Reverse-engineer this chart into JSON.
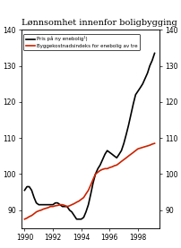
{
  "title": "Lønnsomhet innenfor boligbygging",
  "ylim": [
    85,
    140
  ],
  "yticks": [
    90,
    100,
    110,
    120,
    130,
    140
  ],
  "xlim": [
    1989.8,
    1999.5
  ],
  "xticks": [
    1990,
    1992,
    1994,
    1996,
    1998
  ],
  "legend": [
    {
      "label": "Pris på ny enebolig¹)",
      "color": "#000000",
      "lw": 1.2
    },
    {
      "label": "Byggekostnadsindeks for enebolig av tre",
      "color": "#cc2200",
      "lw": 1.2
    }
  ],
  "line1_x": [
    1990.0,
    1990.17,
    1990.33,
    1990.5,
    1990.67,
    1990.83,
    1991.0,
    1991.17,
    1991.33,
    1991.5,
    1991.67,
    1991.83,
    1992.0,
    1992.17,
    1992.33,
    1992.5,
    1992.67,
    1992.83,
    1993.0,
    1993.17,
    1993.33,
    1993.5,
    1993.67,
    1993.83,
    1994.0,
    1994.17,
    1994.33,
    1994.5,
    1994.67,
    1994.83,
    1995.0,
    1995.17,
    1995.33,
    1995.5,
    1995.67,
    1995.83,
    1996.0,
    1996.17,
    1996.33,
    1996.5,
    1996.67,
    1996.83,
    1997.0,
    1997.17,
    1997.33,
    1997.5,
    1997.67,
    1997.83,
    1998.0,
    1998.17,
    1998.33,
    1998.5,
    1998.67,
    1998.83,
    1999.0,
    1999.17
  ],
  "line1_y": [
    95.5,
    96.5,
    96.5,
    95.5,
    93.5,
    92.0,
    91.5,
    91.5,
    91.5,
    91.5,
    91.5,
    91.5,
    91.5,
    92.0,
    92.0,
    91.5,
    91.0,
    91.0,
    91.0,
    90.0,
    89.5,
    88.5,
    87.5,
    87.5,
    87.5,
    88.0,
    89.5,
    91.5,
    94.5,
    97.5,
    100.0,
    101.5,
    102.5,
    104.0,
    105.5,
    106.5,
    106.0,
    105.5,
    105.0,
    104.5,
    105.5,
    106.5,
    108.5,
    111.0,
    113.5,
    116.5,
    119.5,
    122.0,
    123.0,
    124.0,
    125.0,
    126.5,
    128.0,
    130.0,
    131.5,
    133.5
  ],
  "line2_x": [
    1990.0,
    1990.17,
    1990.33,
    1990.5,
    1990.67,
    1990.83,
    1991.0,
    1991.17,
    1991.33,
    1991.5,
    1991.67,
    1991.83,
    1992.0,
    1992.17,
    1992.33,
    1992.5,
    1992.67,
    1992.83,
    1993.0,
    1993.17,
    1993.33,
    1993.5,
    1993.67,
    1993.83,
    1994.0,
    1994.17,
    1994.33,
    1994.5,
    1994.67,
    1994.83,
    1995.0,
    1995.17,
    1995.33,
    1995.5,
    1995.67,
    1995.83,
    1996.0,
    1996.17,
    1996.33,
    1996.5,
    1996.67,
    1996.83,
    1997.0,
    1997.17,
    1997.33,
    1997.5,
    1997.67,
    1997.83,
    1998.0,
    1998.17,
    1998.33,
    1998.5,
    1998.67,
    1998.83,
    1999.0,
    1999.17
  ],
  "line2_y": [
    87.5,
    87.8,
    88.2,
    88.5,
    89.0,
    89.5,
    89.8,
    90.0,
    90.3,
    90.5,
    90.7,
    91.0,
    91.0,
    91.2,
    91.3,
    91.5,
    91.5,
    91.3,
    91.0,
    91.2,
    91.5,
    91.8,
    92.2,
    92.5,
    93.0,
    93.5,
    94.5,
    95.5,
    97.0,
    98.5,
    100.0,
    100.5,
    101.0,
    101.3,
    101.5,
    101.5,
    101.8,
    102.0,
    102.3,
    102.5,
    103.0,
    103.5,
    104.0,
    104.5,
    105.0,
    105.5,
    106.0,
    106.5,
    107.0,
    107.2,
    107.4,
    107.6,
    107.8,
    108.0,
    108.3,
    108.5
  ]
}
